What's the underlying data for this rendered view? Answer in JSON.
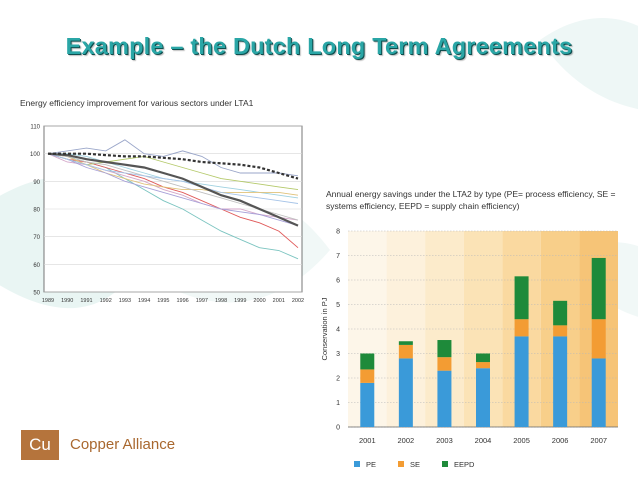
{
  "slide": {
    "title": "Example – the Dutch Long Term Agreements",
    "colors": {
      "title": "#2aa6a6",
      "brand": "#b5743c"
    },
    "background_motif": "faint-teal-leaf-shapes"
  },
  "chart1_caption": "Energy efficiency improvement for various sectors under LTA1",
  "chart2_caption": "Annual energy savings under the LTA2 by type (PE= process efficiency, SE = systems efficiency, EEPD = supply chain efficiency)",
  "logo": {
    "mark": "Cu",
    "name": "Copper Alliance"
  },
  "chart_data": [
    {
      "type": "line",
      "title": "",
      "x": [
        "1989",
        "1990",
        "1991",
        "1992",
        "1993",
        "1994",
        "1995",
        "1996",
        "1997",
        "1998",
        "1999",
        "2000",
        "2001",
        "2002"
      ],
      "ylim": [
        50,
        110
      ],
      "yticks": [
        50,
        60,
        70,
        80,
        90,
        100,
        110
      ],
      "grid": true,
      "legend": "none",
      "series": [
        {
          "values": [
            100,
            99.5,
            98,
            97,
            96,
            95,
            93,
            91,
            88,
            85,
            83,
            80,
            77,
            74
          ],
          "color": "#8a8a8a",
          "style": "thick"
        },
        {
          "values": [
            100,
            100,
            100,
            99.5,
            99,
            99,
            98.5,
            98,
            97,
            96.5,
            96,
            95,
            93,
            91
          ],
          "color": "#333333",
          "style": "dashed"
        },
        {
          "values": [
            100,
            99,
            97,
            95,
            91,
            87,
            83,
            80,
            76,
            72,
            69,
            66,
            65,
            62
          ],
          "color": "#7bc4c0"
        },
        {
          "values": [
            100,
            98,
            97,
            95,
            93,
            91,
            88,
            86,
            83,
            80,
            77,
            75,
            72,
            66
          ],
          "color": "#e05a5a"
        },
        {
          "values": [
            100,
            101,
            102,
            101,
            105,
            100,
            99,
            101,
            99,
            95,
            93,
            93,
            93,
            92
          ],
          "color": "#9aa6c9"
        },
        {
          "values": [
            100,
            98,
            96,
            97,
            98,
            99,
            97,
            95,
            93,
            91,
            90,
            89,
            88,
            87
          ],
          "color": "#b4c96a"
        },
        {
          "values": [
            100,
            97,
            96,
            94,
            92,
            90,
            87,
            85,
            82,
            80,
            80,
            78,
            77,
            76
          ],
          "color": "#d4a6c8"
        },
        {
          "values": [
            100,
            100,
            99,
            97,
            95,
            93,
            91,
            90,
            89,
            88,
            87,
            86,
            85,
            84
          ],
          "color": "#9fd1e0"
        },
        {
          "values": [
            100,
            99,
            96,
            93,
            91,
            89,
            88,
            87,
            87,
            86,
            86,
            86,
            86,
            85
          ],
          "color": "#e0c27a"
        },
        {
          "values": [
            100,
            98,
            95,
            93,
            90,
            88,
            86,
            84,
            82,
            80,
            79,
            78,
            76,
            74
          ],
          "color": "#a7a0d8"
        },
        {
          "values": [
            100,
            99,
            97,
            96,
            94,
            92,
            90,
            88,
            86,
            84,
            82,
            80,
            78,
            76
          ],
          "color": "#c0c0c0"
        },
        {
          "values": [
            100,
            98,
            96,
            94,
            93,
            92,
            91,
            90,
            88,
            86,
            85,
            84,
            83,
            82
          ],
          "color": "#a6c4e8"
        }
      ]
    },
    {
      "type": "bar",
      "stacked": true,
      "title": "",
      "ylabel": "Conservation in PJ",
      "categories": [
        "2001",
        "2002",
        "2003",
        "2004",
        "2005",
        "2006",
        "2007"
      ],
      "ylim": [
        0,
        8
      ],
      "yticks": [
        0,
        1,
        2,
        3,
        4,
        5,
        6,
        7,
        8
      ],
      "legend": "bottom",
      "series": [
        {
          "name": "PE",
          "color": "#3a9ad9",
          "values": [
            1.8,
            2.8,
            2.3,
            2.4,
            3.7,
            3.7,
            2.8
          ]
        },
        {
          "name": "SE",
          "color": "#f39c33",
          "values": [
            0.55,
            0.55,
            0.55,
            0.25,
            0.7,
            0.45,
            1.6
          ]
        },
        {
          "name": "EEPD",
          "color": "#1e8a3a",
          "values": [
            0.65,
            0.15,
            0.7,
            0.35,
            1.75,
            1.0,
            2.5
          ]
        }
      ]
    }
  ]
}
